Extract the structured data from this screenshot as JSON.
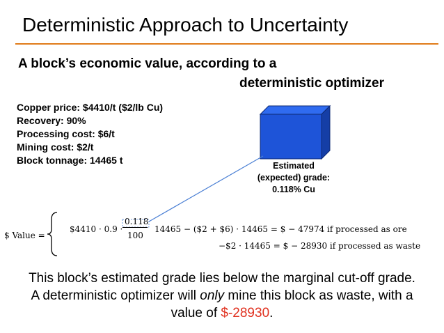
{
  "title": "Deterministic Approach to Uncertainty",
  "subtitle": {
    "line1": "A block’s economic value, according to a",
    "line2": "deterministic optimizer"
  },
  "params": [
    "Copper price: $4410/t   ($2/lb Cu)",
    "Recovery: 90%",
    "Processing cost: $6/t",
    "Mining cost: $2/t",
    "Block tonnage: 14465 t"
  ],
  "block_label": [
    "Estimated",
    "(expected) grade:",
    "0.118% Cu"
  ],
  "formula": {
    "lhs": "$ Value =",
    "ore_prefix": "$4410 · 0.9 ·",
    "ore_frac_num": "0.118",
    "ore_frac_den": "100",
    "ore_suffix": "14465 − ($2 + $6) · 14465 = $ − 47974   if processed as ore",
    "waste": "−$2 · 14465 = $ − 28930   if processed as waste"
  },
  "conclusion": {
    "line1": "This block’s estimated grade lies below the marginal cut-off grade.",
    "line2_a": "A deterministic optimizer will ",
    "line2_em": "only",
    "line2_b": " mine this block as waste, with a",
    "line3_a": "value of ",
    "line3_value": "$-28930",
    "line3_b": "."
  },
  "colors": {
    "accent_rule": "#e07b1a",
    "cube_front": "#1e54d8",
    "cube_top": "#2f6bf0",
    "cube_side": "#153ea6",
    "connector": "#4a7fd4",
    "highlight_value": "#e0301e"
  }
}
